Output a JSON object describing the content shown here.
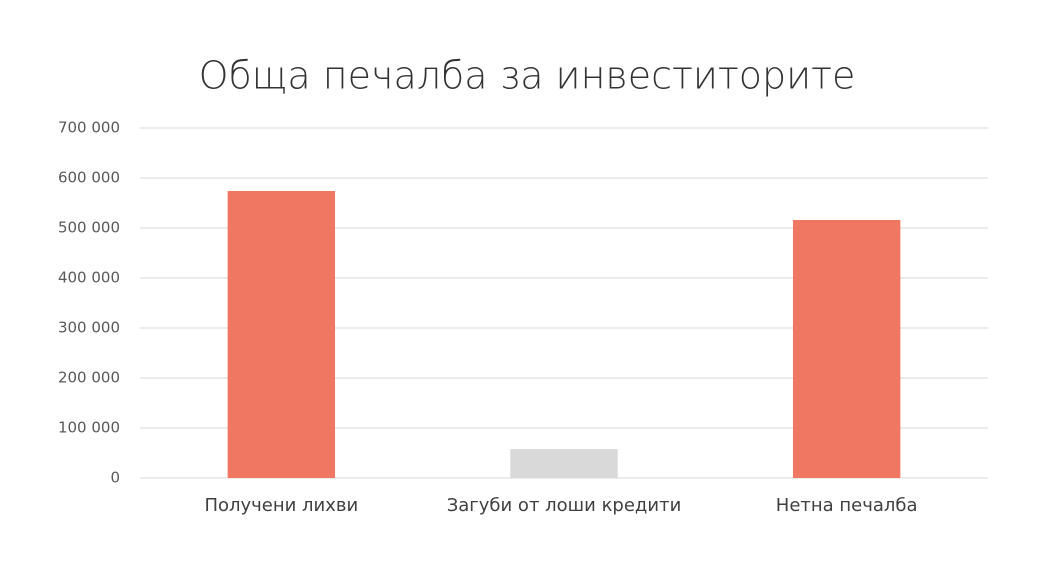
{
  "chart_data": {
    "type": "bar",
    "title": "Обща печалба за инвеститорите",
    "categories": [
      "Получени лихви",
      "Загуби от лоши кредити",
      "Нетна печалба"
    ],
    "values": [
      574000,
      58000,
      516000
    ],
    "colors": [
      "#f07862",
      "#d9d9d9",
      "#f07862"
    ],
    "ylim": [
      0,
      700000
    ],
    "yticks": [
      0,
      {
        "value": 100000,
        "label": "100 000"
      },
      {
        "value": 200000,
        "label": "200 000"
      },
      {
        "value": 300000,
        "label": "300 000"
      },
      {
        "value": 400000,
        "label": "400 000"
      },
      {
        "value": 500000,
        "label": "500 000"
      },
      {
        "value": 600000,
        "label": "600 000"
      },
      {
        "value": 700000,
        "label": "700 000"
      }
    ],
    "grid": true
  }
}
